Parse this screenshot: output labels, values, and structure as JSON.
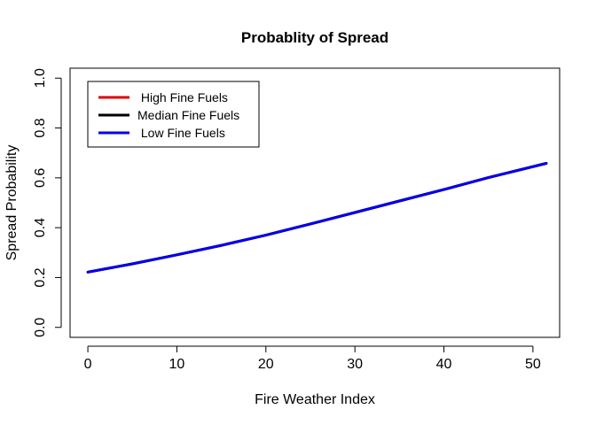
{
  "chart_data": {
    "type": "line",
    "title": "Probablity of Spread",
    "xlabel": "Fire Weather Index",
    "ylabel": "Spread Probability",
    "xlim": [
      -2,
      53
    ],
    "ylim": [
      -0.04,
      1.04
    ],
    "x_ticks": [
      0,
      10,
      20,
      30,
      40,
      50
    ],
    "y_ticks": [
      0.0,
      0.2,
      0.4,
      0.6,
      0.8,
      1.0
    ],
    "x_tick_labels": [
      "0",
      "10",
      "20",
      "30",
      "40",
      "50"
    ],
    "y_tick_labels": [
      "0.0",
      "0.2",
      "0.4",
      "0.6",
      "0.8",
      "1.0"
    ],
    "grid": false,
    "legend_position": "top-left",
    "series": [
      {
        "name": "High Fine Fuels",
        "color": "#e00000",
        "x": [
          0,
          5,
          10,
          15,
          20,
          25,
          30,
          35,
          40,
          45,
          51.5
        ],
        "y": [
          0.222,
          0.255,
          0.291,
          0.329,
          0.37,
          0.415,
          0.461,
          0.507,
          0.553,
          0.601,
          0.658
        ]
      },
      {
        "name": "Median Fine Fuels",
        "color": "#000000",
        "x": [
          0,
          5,
          10,
          15,
          20,
          25,
          30,
          35,
          40,
          45,
          51.5
        ],
        "y": [
          0.222,
          0.255,
          0.291,
          0.329,
          0.37,
          0.415,
          0.461,
          0.507,
          0.553,
          0.601,
          0.658
        ]
      },
      {
        "name": "Low Fine Fuels",
        "color": "#0000ee",
        "x": [
          0,
          5,
          10,
          15,
          20,
          25,
          30,
          35,
          40,
          45,
          51.5
        ],
        "y": [
          0.222,
          0.255,
          0.291,
          0.329,
          0.37,
          0.415,
          0.461,
          0.507,
          0.553,
          0.601,
          0.658
        ]
      }
    ],
    "legend": [
      " High Fine Fuels",
      "Median Fine Fuels",
      " Low Fine Fuels"
    ]
  }
}
